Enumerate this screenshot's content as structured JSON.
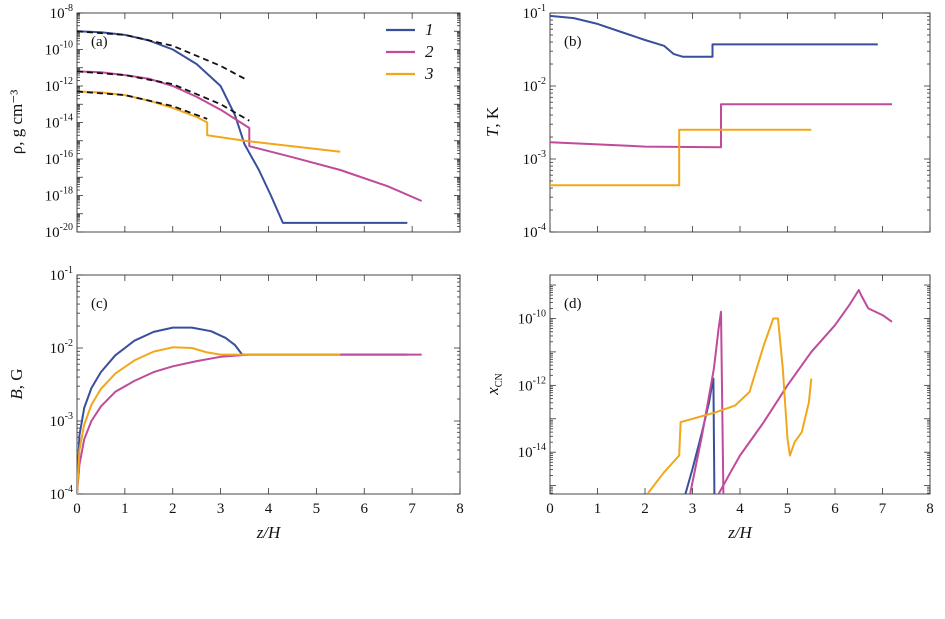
{
  "colors": {
    "series1": "#3A4F9C",
    "series2": "#C04A9B",
    "series3": "#F2A71B",
    "dashed": "#111111"
  },
  "legend": [
    {
      "label": "1",
      "color": "#3A4F9C"
    },
    {
      "label": "2",
      "color": "#C04A9B"
    },
    {
      "label": "3",
      "color": "#F2A71B"
    }
  ],
  "chart_data": [
    {
      "id": "a",
      "panel_label": "(a)",
      "type": "line",
      "ylabel": "ρ, g cm⁻³",
      "xlim": [
        0,
        8
      ],
      "ylim_log10": [
        -20,
        -8
      ],
      "yticks": [
        {
          "base": "10",
          "exp": "-8",
          "e": -8
        },
        {
          "base": "10",
          "exp": "-10",
          "e": -10
        },
        {
          "base": "10",
          "exp": "-12",
          "e": -12
        },
        {
          "base": "10",
          "exp": "-14",
          "e": -14
        },
        {
          "base": "10",
          "exp": "-16",
          "e": -16
        },
        {
          "base": "10",
          "exp": "-18",
          "e": -18
        },
        {
          "base": "10",
          "exp": "-20",
          "e": -20
        }
      ],
      "series": [
        {
          "name": "1",
          "color": "#3A4F9C",
          "dashed": false,
          "points": [
            [
              0,
              -9.0
            ],
            [
              0.5,
              -9.05
            ],
            [
              1.0,
              -9.2
            ],
            [
              1.5,
              -9.5
            ],
            [
              2.0,
              -10.0
            ],
            [
              2.5,
              -10.8
            ],
            [
              3.0,
              -12.0
            ],
            [
              3.3,
              -13.6
            ],
            [
              3.5,
              -15.2
            ],
            [
              3.8,
              -16.6
            ],
            [
              4.05,
              -18.0
            ],
            [
              4.3,
              -19.5
            ],
            [
              5.0,
              -19.5
            ],
            [
              6.0,
              -19.5
            ],
            [
              6.9,
              -19.5
            ]
          ]
        },
        {
          "name": "2",
          "color": "#C04A9B",
          "dashed": false,
          "points": [
            [
              0,
              -11.2
            ],
            [
              0.5,
              -11.25
            ],
            [
              1.0,
              -11.4
            ],
            [
              1.5,
              -11.6
            ],
            [
              2.0,
              -12.0
            ],
            [
              2.5,
              -12.6
            ],
            [
              3.0,
              -13.3
            ],
            [
              3.6,
              -14.3
            ],
            [
              3.6,
              -15.3
            ],
            [
              4.5,
              -15.9
            ],
            [
              5.5,
              -16.6
            ],
            [
              6.5,
              -17.5
            ],
            [
              7.2,
              -18.3
            ]
          ]
        },
        {
          "name": "3",
          "color": "#F2A71B",
          "dashed": false,
          "points": [
            [
              0,
              -12.3
            ],
            [
              0.5,
              -12.35
            ],
            [
              1.0,
              -12.5
            ],
            [
              1.5,
              -12.8
            ],
            [
              2.0,
              -13.2
            ],
            [
              2.5,
              -13.7
            ],
            [
              2.72,
              -14.0
            ],
            [
              2.72,
              -14.7
            ],
            [
              3.5,
              -15.0
            ],
            [
              4.5,
              -15.3
            ],
            [
              5.5,
              -15.6
            ]
          ]
        },
        {
          "name": "dashed-1",
          "color": "#111111",
          "dashed": true,
          "points": [
            [
              0,
              -9.0
            ],
            [
              1.0,
              -9.2
            ],
            [
              2.0,
              -9.8
            ],
            [
              3.0,
              -10.9
            ],
            [
              3.5,
              -11.6
            ]
          ]
        },
        {
          "name": "dashed-2",
          "color": "#111111",
          "dashed": true,
          "points": [
            [
              0,
              -11.2
            ],
            [
              1.0,
              -11.4
            ],
            [
              2.0,
              -11.9
            ],
            [
              3.0,
              -13.0
            ],
            [
              3.6,
              -13.9
            ]
          ]
        },
        {
          "name": "dashed-3",
          "color": "#111111",
          "dashed": true,
          "points": [
            [
              0,
              -12.3
            ],
            [
              1.0,
              -12.5
            ],
            [
              2.0,
              -13.1
            ],
            [
              2.72,
              -13.8
            ]
          ]
        }
      ]
    },
    {
      "id": "b",
      "panel_label": "(b)",
      "type": "line",
      "ylabel": "T, K",
      "xlim": [
        0,
        8
      ],
      "ylim_log10": [
        -4,
        -1
      ],
      "yticks": [
        {
          "base": "10",
          "exp": "-1",
          "e": -1
        },
        {
          "base": "10",
          "exp": "-2",
          "e": -2
        },
        {
          "base": "10",
          "exp": "-3",
          "e": -3
        },
        {
          "base": "10",
          "exp": "-4",
          "e": -4
        }
      ],
      "series": [
        {
          "name": "1",
          "color": "#3A4F9C",
          "dashed": false,
          "points": [
            [
              0,
              -1.04
            ],
            [
              0.5,
              -1.07
            ],
            [
              1.0,
              -1.15
            ],
            [
              1.5,
              -1.26
            ],
            [
              2.0,
              -1.37
            ],
            [
              2.4,
              -1.45
            ],
            [
              2.6,
              -1.56
            ],
            [
              2.8,
              -1.6
            ],
            [
              3.42,
              -1.6
            ],
            [
              3.42,
              -1.43
            ],
            [
              5.0,
              -1.43
            ],
            [
              6.9,
              -1.43
            ]
          ]
        },
        {
          "name": "2",
          "color": "#C04A9B",
          "dashed": false,
          "points": [
            [
              0,
              -2.77
            ],
            [
              1.0,
              -2.8
            ],
            [
              2.0,
              -2.83
            ],
            [
              3.6,
              -2.84
            ],
            [
              3.6,
              -2.25
            ],
            [
              5.0,
              -2.25
            ],
            [
              7.2,
              -2.25
            ]
          ]
        },
        {
          "name": "3",
          "color": "#F2A71B",
          "dashed": false,
          "points": [
            [
              0,
              -3.36
            ],
            [
              1.0,
              -3.36
            ],
            [
              2.72,
              -3.36
            ],
            [
              2.72,
              -2.6
            ],
            [
              4.0,
              -2.6
            ],
            [
              5.5,
              -2.6
            ]
          ]
        }
      ]
    },
    {
      "id": "c",
      "panel_label": "(c)",
      "type": "line",
      "ylabel": "B, G",
      "xlabel": "z/H",
      "xlim": [
        0,
        8
      ],
      "ylim_log10": [
        -4,
        -1
      ],
      "xticks": [
        "0",
        "1",
        "2",
        "3",
        "4",
        "5",
        "6",
        "7",
        "8"
      ],
      "yticks": [
        {
          "base": "10",
          "exp": "-1",
          "e": -1
        },
        {
          "base": "10",
          "exp": "-2",
          "e": -2
        },
        {
          "base": "10",
          "exp": "-3",
          "e": -3
        },
        {
          "base": "10",
          "exp": "-4",
          "e": -4
        }
      ],
      "series": [
        {
          "name": "1",
          "color": "#3A4F9C",
          "dashed": false,
          "points": [
            [
              0,
              -4.0
            ],
            [
              0.05,
              -3.2
            ],
            [
              0.15,
              -2.82
            ],
            [
              0.3,
              -2.55
            ],
            [
              0.5,
              -2.33
            ],
            [
              0.8,
              -2.1
            ],
            [
              1.2,
              -1.9
            ],
            [
              1.6,
              -1.78
            ],
            [
              2.0,
              -1.72
            ],
            [
              2.4,
              -1.72
            ],
            [
              2.8,
              -1.77
            ],
            [
              3.1,
              -1.86
            ],
            [
              3.3,
              -1.96
            ],
            [
              3.45,
              -2.09
            ],
            [
              4.0,
              -2.09
            ],
            [
              5.5,
              -2.09
            ],
            [
              6.9,
              -2.09
            ]
          ]
        },
        {
          "name": "2",
          "color": "#C04A9B",
          "dashed": false,
          "points": [
            [
              0,
              -4.0
            ],
            [
              0.05,
              -3.6
            ],
            [
              0.15,
              -3.25
            ],
            [
              0.3,
              -3.0
            ],
            [
              0.5,
              -2.8
            ],
            [
              0.8,
              -2.6
            ],
            [
              1.2,
              -2.45
            ],
            [
              1.6,
              -2.33
            ],
            [
              2.0,
              -2.25
            ],
            [
              2.5,
              -2.18
            ],
            [
              3.0,
              -2.12
            ],
            [
              3.6,
              -2.09
            ],
            [
              5.0,
              -2.09
            ],
            [
              7.2,
              -2.09
            ]
          ]
        },
        {
          "name": "3",
          "color": "#F2A71B",
          "dashed": false,
          "points": [
            [
              0,
              -4.0
            ],
            [
              0.05,
              -3.4
            ],
            [
              0.15,
              -3.05
            ],
            [
              0.3,
              -2.78
            ],
            [
              0.5,
              -2.56
            ],
            [
              0.8,
              -2.35
            ],
            [
              1.2,
              -2.17
            ],
            [
              1.6,
              -2.05
            ],
            [
              2.0,
              -1.99
            ],
            [
              2.4,
              -2.0
            ],
            [
              2.72,
              -2.06
            ],
            [
              3.0,
              -2.09
            ],
            [
              4.0,
              -2.09
            ],
            [
              5.5,
              -2.09
            ]
          ]
        }
      ]
    },
    {
      "id": "d",
      "panel_label": "(d)",
      "type": "line",
      "ylabel": "x_CN",
      "xlabel": "z/H",
      "xlim": [
        0,
        8
      ],
      "ylim_log10": [
        -15.25,
        -8.7
      ],
      "xticks": [
        "0",
        "1",
        "2",
        "3",
        "4",
        "5",
        "6",
        "7",
        "8"
      ],
      "yticks": [
        {
          "base": "10",
          "exp": "-10",
          "e": -10
        },
        {
          "base": "10",
          "exp": "-12",
          "e": -12
        },
        {
          "base": "10",
          "exp": "-14",
          "e": -14
        }
      ],
      "series": [
        {
          "name": "1",
          "color": "#3A4F9C",
          "dashed": false,
          "points": [
            [
              2.85,
              -15.25
            ],
            [
              3.0,
              -14.5
            ],
            [
              3.2,
              -13.4
            ],
            [
              3.35,
              -12.5
            ],
            [
              3.42,
              -11.9
            ],
            [
              3.44,
              -11.8
            ],
            [
              3.46,
              -15.25
            ]
          ]
        },
        {
          "name": "2",
          "color": "#C04A9B",
          "dashed": false,
          "points": [
            [
              2.95,
              -15.25
            ],
            [
              3.2,
              -13.5
            ],
            [
              3.45,
              -11.5
            ],
            [
              3.55,
              -10.3
            ],
            [
              3.6,
              -9.8
            ],
            [
              3.65,
              -15.25
            ]
          ]
        },
        {
          "name": "2b",
          "color": "#C04A9B",
          "dashed": false,
          "points": [
            [
              3.55,
              -15.25
            ],
            [
              3.8,
              -14.6
            ],
            [
              4.0,
              -14.1
            ],
            [
              4.5,
              -13.1
            ],
            [
              5.0,
              -12.0
            ],
            [
              5.5,
              -11.0
            ],
            [
              6.0,
              -10.2
            ],
            [
              6.3,
              -9.6
            ],
            [
              6.5,
              -9.15
            ],
            [
              6.55,
              -9.3
            ],
            [
              6.7,
              -9.7
            ],
            [
              7.0,
              -9.9
            ],
            [
              7.2,
              -10.1
            ]
          ]
        },
        {
          "name": "3",
          "color": "#F2A71B",
          "dashed": false,
          "points": [
            [
              2.05,
              -15.25
            ],
            [
              2.4,
              -14.6
            ],
            [
              2.72,
              -14.1
            ],
            [
              2.75,
              -13.1
            ],
            [
              3.0,
              -13.0
            ],
            [
              3.5,
              -12.8
            ],
            [
              3.9,
              -12.6
            ],
            [
              4.2,
              -12.2
            ],
            [
              4.5,
              -10.8
            ],
            [
              4.7,
              -10.0
            ],
            [
              4.8,
              -10.0
            ],
            [
              4.9,
              -11.5
            ],
            [
              5.0,
              -13.6
            ],
            [
              5.05,
              -14.1
            ],
            [
              5.15,
              -13.7
            ],
            [
              5.3,
              -13.4
            ],
            [
              5.45,
              -12.5
            ],
            [
              5.5,
              -11.8
            ]
          ]
        }
      ]
    }
  ]
}
